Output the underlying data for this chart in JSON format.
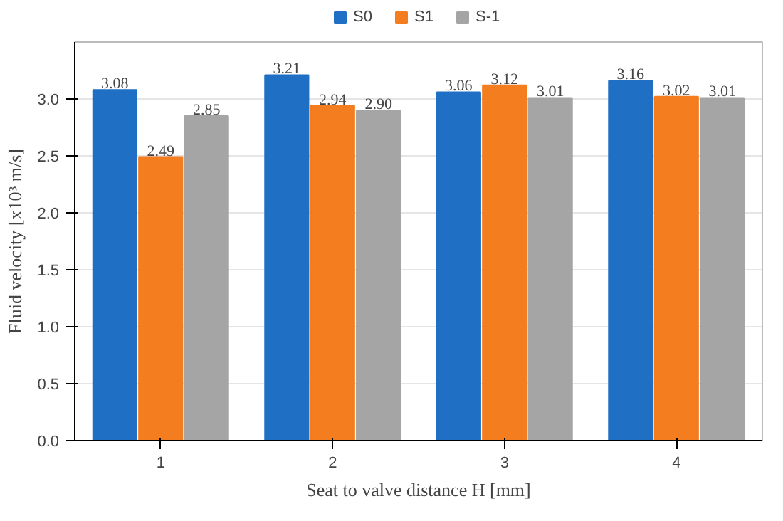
{
  "chart_data": {
    "type": "bar",
    "xlabel": "Seat to valve distance H [mm]",
    "ylabel": "Fluid velocity [x10³ m/s]",
    "categories": [
      "1",
      "2",
      "3",
      "4"
    ],
    "series": [
      {
        "name": "S0",
        "color": "#1f6fc5",
        "values": [
          3.08,
          3.21,
          3.06,
          3.16
        ],
        "value_labels": [
          "3.08",
          "3.21",
          "3.06",
          "3.16"
        ]
      },
      {
        "name": "S1",
        "color": "#f47d20",
        "values": [
          2.49,
          2.94,
          3.12,
          3.02
        ],
        "value_labels": [
          "2.49",
          "2.94",
          "3.12",
          "3.02"
        ]
      },
      {
        "name": "S-1",
        "color": "#a5a5a5",
        "values": [
          2.85,
          2.9,
          3.01,
          3.01
        ],
        "value_labels": [
          "2.85",
          "2.90",
          "3.01",
          "3.01"
        ]
      }
    ],
    "ylim": [
      0,
      3.5
    ],
    "yticks": [
      {
        "value": 0,
        "label": "0.0"
      },
      {
        "value": 0.5,
        "label": "0.5"
      },
      {
        "value": 1,
        "label": "1.0"
      },
      {
        "value": 1.5,
        "label": "1.5"
      },
      {
        "value": 2,
        "label": "2.0"
      },
      {
        "value": 2.5,
        "label": "2.5"
      },
      {
        "value": 3,
        "label": "3.0"
      }
    ],
    "grid": "y",
    "legend": "top"
  }
}
